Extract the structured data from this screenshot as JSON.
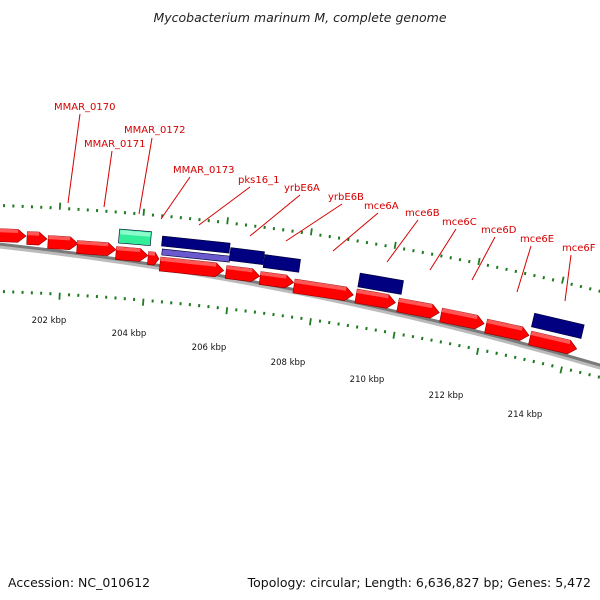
{
  "title": "Mycobacterium marinum M, complete genome",
  "footer": {
    "accession": "Accession: NC_010612",
    "summary": "Topology: circular; Length: 6,636,827 bp; Genes: 5,472"
  },
  "colors": {
    "forward_cds": "#ff0000",
    "reverse_cds": "#000080",
    "other_feature": "#33ee99",
    "backbone": "#888888",
    "label": "#d40000",
    "tick": "#1f7a1f"
  },
  "scale_labels": [
    "202 kbp",
    "204 kbp",
    "206 kbp",
    "208 kbp",
    "210 kbp",
    "212 kbp",
    "214 kbp"
  ],
  "gene_labels": [
    "MMAR_0170",
    "MMAR_0171",
    "MMAR_0172",
    "MMAR_0173",
    "pks16_1",
    "yrbE6A",
    "yrbE6B",
    "mce6A",
    "mce6B",
    "mce6C",
    "mce6D",
    "mce6E",
    "mce6F"
  ]
}
